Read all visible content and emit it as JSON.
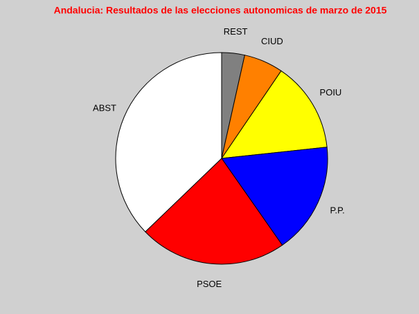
{
  "chart_data": {
    "type": "pie",
    "title": "Andalucia: Resultados de las elecciones autonomicas de marzo de 2015",
    "categories": [
      "REST",
      "CIUD",
      "POIU",
      "P.P.",
      "PSOE",
      "ABST"
    ],
    "values": [
      3.5,
      6,
      13.8,
      17,
      22.5,
      37.2
    ],
    "colors": [
      "#808080",
      "#ff8000",
      "#ffff00",
      "#0000ff",
      "#ff0000",
      "#ffffff"
    ]
  }
}
